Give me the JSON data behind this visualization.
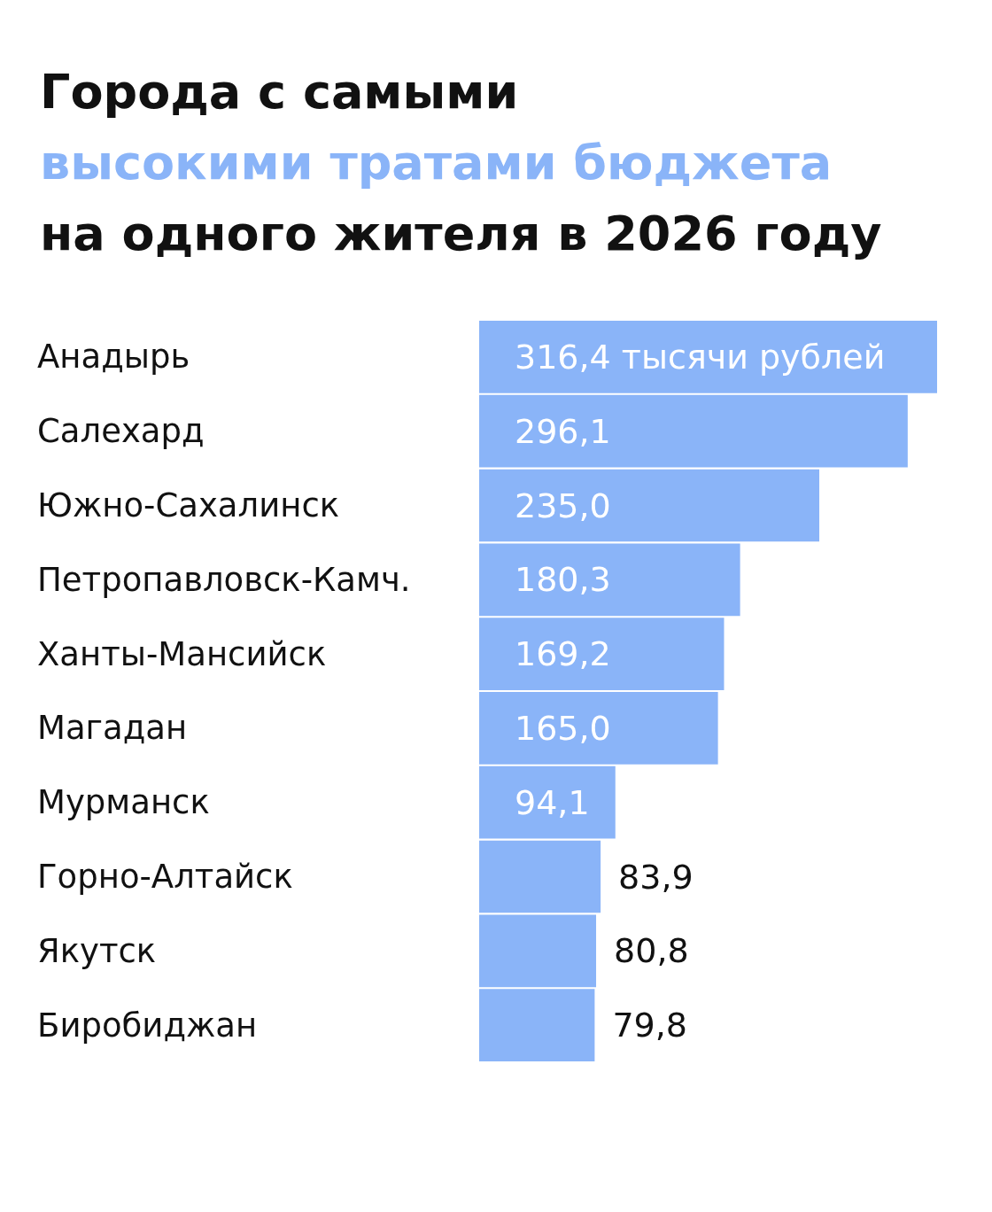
{
  "chart_data": {
    "type": "bar",
    "orientation": "horizontal",
    "title": "Города с самыми\nвысокими тратами бюджета\nна одного жителя в 2026 году",
    "categories": [
      "Анадырь",
      "Салехард",
      "Южно-Сахалинск",
      "Петропавловск-Камч.",
      "Ханты-Мансийск",
      "Магадан",
      "Мурманск",
      "Горно-Алтайск",
      "Якутск",
      "Биробиджан"
    ],
    "values": [
      316.4,
      296.1,
      235.0,
      180.3,
      169.2,
      165.0,
      94.1,
      83.9,
      80.8,
      79.8
    ],
    "value_labels": [
      "316,4 тысячи рублей",
      "296,1",
      "235,0",
      "180,3",
      "169,2",
      "165,0",
      "94,1",
      "83,9",
      "80,8",
      "79,8"
    ],
    "color": "#8ab4f8"
  }
}
